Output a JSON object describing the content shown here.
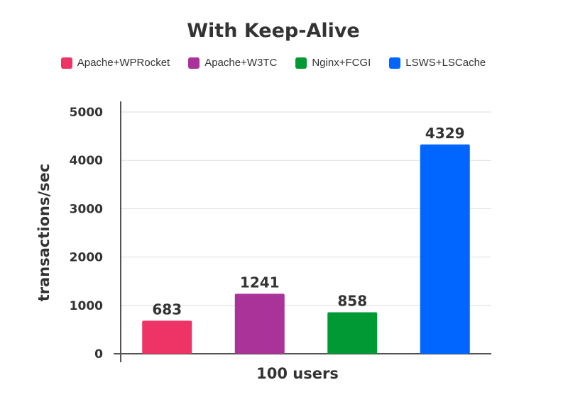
{
  "chart_data": {
    "type": "bar",
    "title": "With Keep-Alive",
    "xlabel": "100 users",
    "ylabel": "transactions/sec",
    "categories": [
      "100 users"
    ],
    "ylim": [
      0,
      5000
    ],
    "yticks": [
      "0",
      "1000",
      "2000",
      "3000",
      "4000",
      "5000"
    ],
    "grid": true,
    "legend_position": "top",
    "series": [
      {
        "name": "Apache+WPRocket",
        "values": [
          683
        ],
        "color": "#ee3366"
      },
      {
        "name": "Apache+W3TC",
        "values": [
          1241
        ],
        "color": "#aa3399"
      },
      {
        "name": "Nginx+FCGI",
        "values": [
          858
        ],
        "color": "#009933"
      },
      {
        "name": "LSWS+LSCache",
        "values": [
          4329
        ],
        "color": "#0066ff"
      }
    ]
  }
}
